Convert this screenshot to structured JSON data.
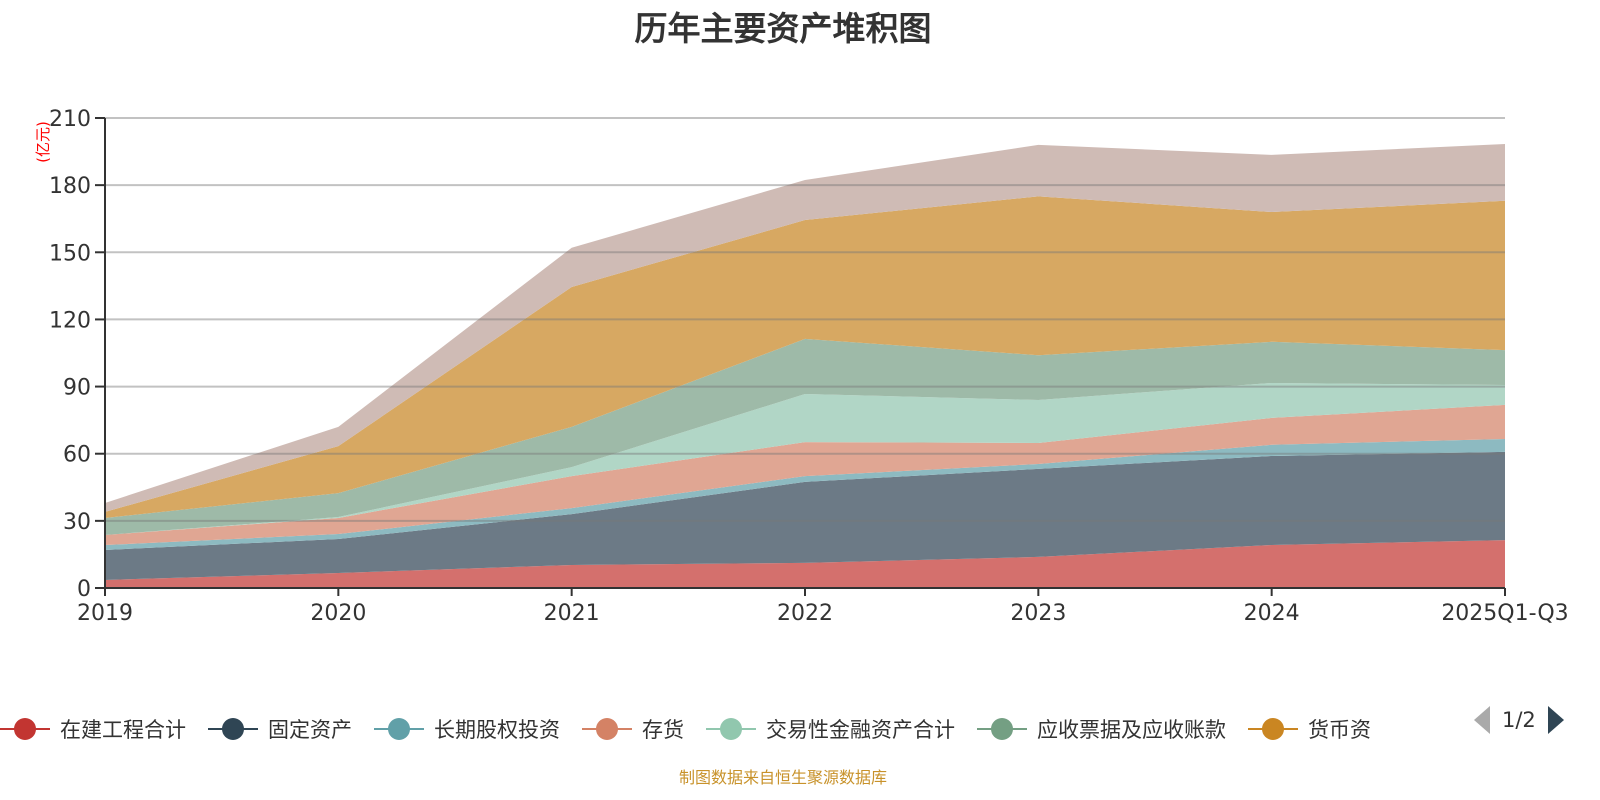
{
  "title": "历年主要资产堆积图",
  "footer": "制图数据来自恒生聚源数据库",
  "legend_page": "1/2",
  "chart_data": {
    "type": "area",
    "stacked": true,
    "title": "历年主要资产堆积图",
    "xlabel": "",
    "ylabel": "(亿元)",
    "ylim": [
      0,
      210
    ],
    "yticks": [
      0,
      30,
      60,
      90,
      120,
      150,
      180,
      210
    ],
    "grid": true,
    "legend_position": "bottom",
    "categories": [
      "2019",
      "2020",
      "2021",
      "2022",
      "2023",
      "2024",
      "2025Q1-Q3"
    ],
    "series": [
      {
        "name": "在建工程合计",
        "color": "#c23531",
        "fill": "#d4706d",
        "values": [
          3.6,
          6.7,
          10.3,
          11.2,
          13.9,
          19.2,
          21.4
        ]
      },
      {
        "name": "固定资产",
        "color": "#2f4554",
        "fill": "#6c7a86",
        "values": [
          13.4,
          15.2,
          22.7,
          36.2,
          39.3,
          39.8,
          39.4
        ]
      },
      {
        "name": "长期股权投资",
        "color": "#61a0a8",
        "fill": "#8dbac1",
        "values": [
          2.2,
          2.2,
          2.7,
          2.6,
          2.2,
          5.0,
          5.8
        ]
      },
      {
        "name": "存货",
        "color": "#d48265",
        "fill": "#e0a693",
        "values": [
          4.5,
          7.2,
          14.3,
          15.2,
          9.4,
          12.0,
          15.2
        ]
      },
      {
        "name": "交易性金融资产合计",
        "color": "#91c7ae",
        "fill": "#b1d6c6",
        "values": [
          0,
          0.4,
          4.0,
          21.5,
          19.2,
          15.6,
          8.9
        ]
      },
      {
        "name": "应收票据及应收账款",
        "color": "#749f83",
        "fill": "#9ebaa8",
        "values": [
          7.6,
          10.7,
          18.0,
          24.6,
          20.0,
          18.4,
          15.6
        ]
      },
      {
        "name": "货币资",
        "color": "#ca8622",
        "fill": "#d7a862",
        "values": [
          2.7,
          21.0,
          62.5,
          53.1,
          71.0,
          58.0,
          66.7
        ]
      },
      {
        "name": "",
        "color": "#bda29a",
        "fill": "#cfbbb5",
        "values": [
          4.0,
          8.6,
          17.5,
          17.9,
          23.0,
          25.5,
          25.4
        ]
      }
    ]
  }
}
